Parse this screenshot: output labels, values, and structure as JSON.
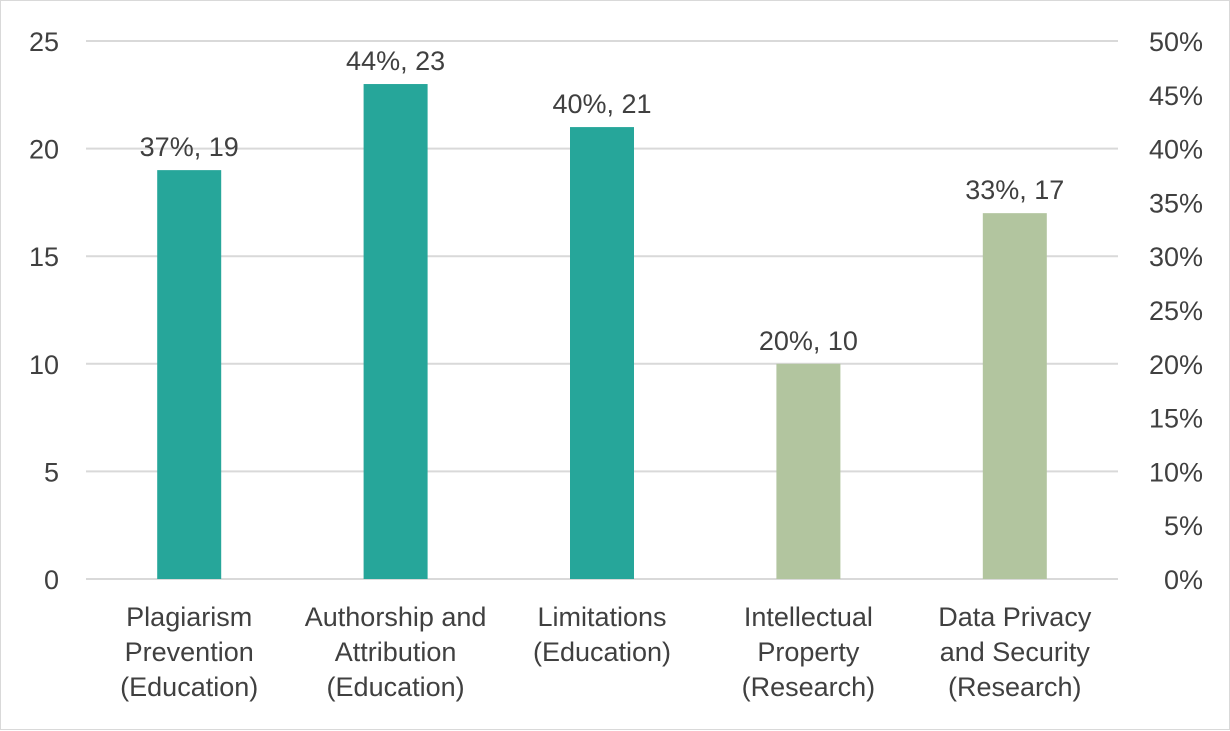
{
  "chart_data": {
    "type": "bar",
    "title": "",
    "xlabel": "",
    "ylabel": "",
    "y2label": "",
    "ylim": [
      0,
      25
    ],
    "y2lim": [
      0,
      0.5
    ],
    "yticks": [
      0,
      5,
      10,
      15,
      20,
      25
    ],
    "yticks_labels": [
      "0",
      "5",
      "10",
      "15",
      "20",
      "25"
    ],
    "y2ticks_labels": [
      "0%",
      "5%",
      "10%",
      "15%",
      "20%",
      "25%",
      "30%",
      "35%",
      "40%",
      "45%",
      "50%"
    ],
    "grid": true,
    "legend": "none",
    "categories": [
      [
        "Plagiarism",
        "Prevention",
        "(Education)"
      ],
      [
        "Authorship and",
        "Attribution",
        "(Education)"
      ],
      [
        "Limitations",
        "(Education)"
      ],
      [
        "Intellectual",
        "Property",
        "(Research)"
      ],
      [
        "Data Privacy",
        "and Security",
        "(Research)"
      ]
    ],
    "values": [
      19,
      23,
      21,
      10,
      17
    ],
    "percents": [
      0.37,
      0.44,
      0.4,
      0.2,
      0.33
    ],
    "data_labels": [
      "37%, 19",
      "44%, 23",
      "40%, 21",
      "20%, 10",
      "33%, 17"
    ],
    "groups": [
      "Education",
      "Education",
      "Education",
      "Research",
      "Research"
    ],
    "colors": {
      "Education": "#26a69a",
      "Research": "#b2c59f",
      "grid": "#d9d9d9",
      "text": "#404040"
    }
  }
}
